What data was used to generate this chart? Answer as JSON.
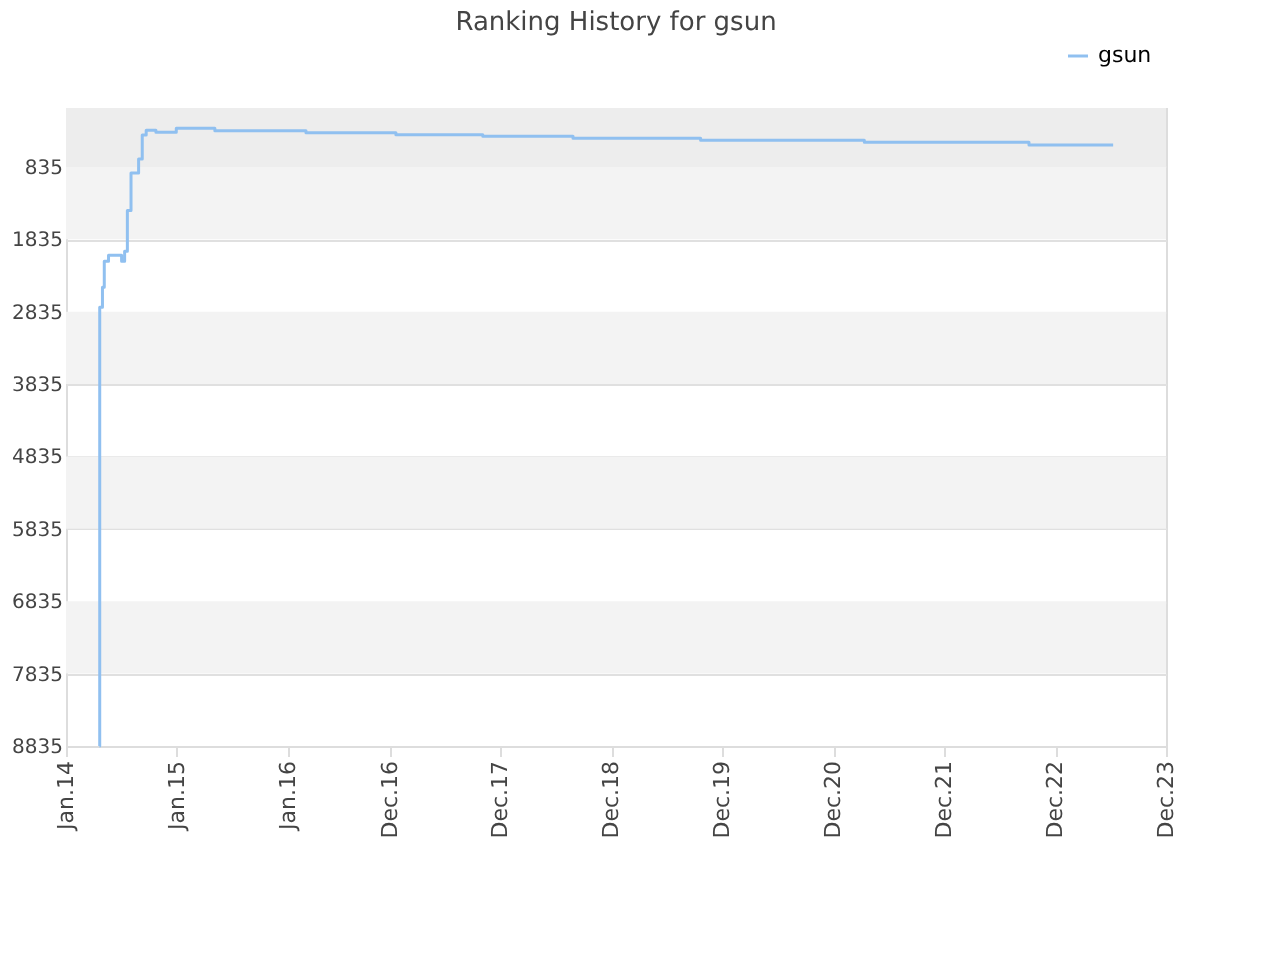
{
  "chart_data": {
    "type": "step",
    "title": "Ranking History for gsun",
    "x": [
      "2014-04-21",
      "2014-04-22",
      "2014-05-01",
      "2014-05-07",
      "2014-05-21",
      "2014-07-03",
      "2014-07-13",
      "2014-07-22",
      "2014-08-03",
      "2014-08-28",
      "2014-09-09",
      "2014-09-22",
      "2014-10-24",
      "2014-12-30",
      "2015-05-06",
      "2016-03-01",
      "2016-12-22",
      "2017-10-04",
      "2018-07-28",
      "2019-09-21",
      "2021-03-13",
      "2022-09-06",
      "2023-06-10"
    ],
    "series": [
      {
        "name": "gsun",
        "color": "#90c0f0",
        "values": [
          8835,
          2774,
          2497,
          2137,
          2054,
          2137,
          2000,
          1436,
          918,
          724,
          392,
          328,
          355,
          300,
          335,
          363,
          390,
          410,
          438,
          466,
          494,
          530,
          530
        ]
      }
    ],
    "xlim": [
      "2014-01-01",
      "2023-12-01"
    ],
    "xticks": [
      {
        "value": "2014-01-01",
        "label": "Jan.14"
      },
      {
        "value": "2015-01-01",
        "label": "Jan.15"
      },
      {
        "value": "2016-01-01",
        "label": "Jan.16"
      },
      {
        "value": "2016-12-01",
        "label": "Dec.16"
      },
      {
        "value": "2017-12-01",
        "label": "Dec.17"
      },
      {
        "value": "2018-12-01",
        "label": "Dec.18"
      },
      {
        "value": "2019-12-01",
        "label": "Dec.19"
      },
      {
        "value": "2020-12-01",
        "label": "Dec.20"
      },
      {
        "value": "2021-12-01",
        "label": "Dec.21"
      },
      {
        "value": "2022-12-01",
        "label": "Dec.22"
      },
      {
        "value": "2023-12-01",
        "label": "Dec.23"
      }
    ],
    "ylim": [
      8835,
      20
    ],
    "yticks": [
      835,
      1835,
      2835,
      3835,
      4835,
      5835,
      6835,
      7835,
      8835
    ],
    "bands": [
      {
        "axis": "y",
        "from": 20,
        "to": 835,
        "color": "#ededed"
      },
      {
        "axis": "y",
        "from": 835,
        "to": 1835,
        "color": "#f3f3f3"
      },
      {
        "axis": "y",
        "from": 2835,
        "to": 3835,
        "color": "#f3f3f3"
      },
      {
        "axis": "y",
        "from": 4835,
        "to": 5835,
        "color": "#f3f3f3"
      },
      {
        "axis": "y",
        "from": 6835,
        "to": 7835,
        "color": "#f3f3f3"
      }
    ],
    "grid": "y",
    "legend": "top right",
    "marker": "none",
    "line_style": "solid"
  }
}
